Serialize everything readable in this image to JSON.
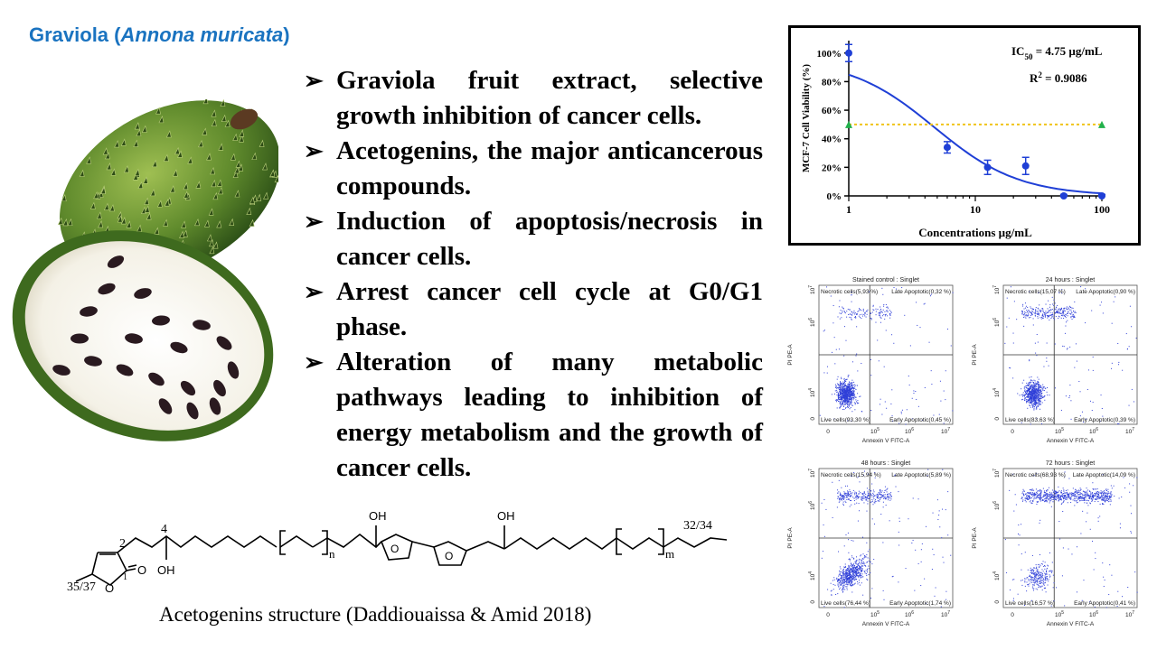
{
  "title": {
    "main": "Graviola (",
    "scientific": "Annona muricata",
    "close": ")"
  },
  "bullets": [
    "Graviola fruit extract, selective growth inhibition of cancer cells.",
    "Acetogenins, the major anticancerous compounds.",
    "Induction of apoptosis/necrosis in cancer cells.",
    "Arrest cancer cell cycle at G0/G1 phase.",
    "Alteration of many metabolic pathways leading to inhibition of energy metabolism and the growth of cancer cells."
  ],
  "bullet_glyph": "➢",
  "chart_data": {
    "type": "scatter",
    "title": "",
    "xlabel": "Concentrations µg/mL",
    "ylabel": "MCF-7 Cell Viability (%)",
    "xscale": "log",
    "xlim": [
      1,
      100
    ],
    "ylim": [
      0,
      100
    ],
    "xticks": [
      "1",
      "10",
      "100"
    ],
    "yticks": [
      "0%",
      "20%",
      "40%",
      "60%",
      "80%",
      "100%"
    ],
    "annotations": [
      "IC50 = 4.75 µg/mL",
      "R2 = 0.9086"
    ],
    "ic50_label": "IC",
    "ic50_sub": "50",
    "ic50_value": " = 4.75 µg/mL",
    "r2_label": "R",
    "r2_sup": "2",
    "r2_value": " = 0.9086",
    "series": [
      {
        "x": [
          1,
          6,
          12.5,
          25,
          50,
          100
        ],
        "y": [
          100,
          34,
          20,
          21,
          0,
          0
        ],
        "err": [
          6,
          4,
          5,
          6,
          1,
          1
        ],
        "color": "#1f3fd6"
      }
    ],
    "fit": {
      "ic50": 4.75,
      "top": 96,
      "bottom": 0,
      "hill": 1.3,
      "color": "#1f3fd6"
    },
    "reference": {
      "x": [
        1,
        100
      ],
      "y": [
        50,
        50
      ],
      "color": "#f0c419",
      "marker_color": "#22b14c"
    }
  },
  "flow_panels": [
    {
      "title": "Stained control : Singlet",
      "ul": "Necrotic cells(5,93 %)",
      "ur": "Late Apoptotic(0,32 %)",
      "ll": "Live cells(93,30 %)",
      "lr": "Early Apoptotic(0,45 %)",
      "xlabel": "Annexin V FITC-A",
      "ylabel": "PI PE-A"
    },
    {
      "title": "24 hours : Singlet",
      "ul": "Necrotic cells(15,07 %)",
      "ur": "Late Apoptotic(0,90 %)",
      "ll": "Live cells(83,63 %)",
      "lr": "Early Apoptotic(0,39 %)",
      "xlabel": "Annexin V FITC-A",
      "ylabel": "PI PE-A"
    },
    {
      "title": "48 hours : Singlet",
      "ul": "Necrotic cells(15,94 %)",
      "ur": "Late Apoptotic(5,89 %)",
      "ll": "Live cells(76,44 %)",
      "lr": "Early Apoptotic(1,74 %)",
      "xlabel": "Annexin V FITC-A",
      "ylabel": "PI PE-A"
    },
    {
      "title": "72 hours : Singlet",
      "ul": "Necrotic cells(68,93 %)",
      "ur": "Late Apoptotic(14,09 %)",
      "ll": "Live cells(16,57 %)",
      "lr": "Early Apoptotic(0,41 %)",
      "xlabel": "Annexin V FITC-A",
      "ylabel": "PI PE-A"
    }
  ],
  "flow_ticks": {
    "x": [
      "0",
      "10",
      "10",
      "10"
    ],
    "x_exp": [
      "",
      "5",
      "6",
      "7"
    ],
    "y": [
      "0",
      "10",
      "10",
      "10"
    ],
    "y_exp": [
      "",
      "4",
      "6",
      "7"
    ]
  },
  "structure": {
    "labels": [
      "2",
      "4",
      "OH",
      "OH",
      "OH",
      "O",
      "O",
      "O",
      "O",
      "n",
      "m",
      "32/34",
      "35/37",
      "1"
    ]
  },
  "caption": "Acetogenins structure (Daddiouaissa & Amid 2018)"
}
